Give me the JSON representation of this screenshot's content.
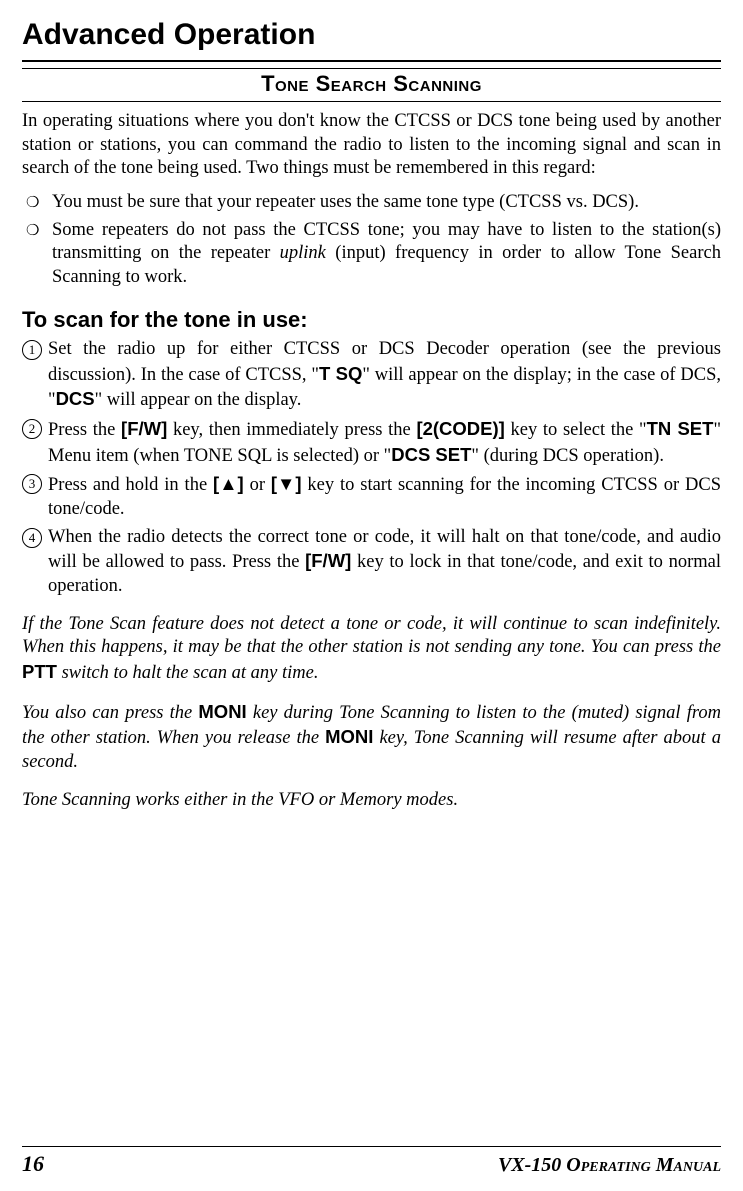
{
  "title": "Advanced Operation",
  "section_heading": "Tone Search Scanning",
  "intro": "In operating situations where you don't know the CTCSS or DCS tone being used by another station or stations, you can command the radio to listen to the incoming signal and scan in search of the tone being used. Two things must be remembered in this regard:",
  "bullets": {
    "b1": "You must be sure that your repeater uses the same tone type (CTCSS vs. DCS).",
    "b2_a": "Some repeaters do not pass the CTCSS tone; you may have to listen to the station(s) transmitting on the repeater ",
    "b2_uplink": "uplink",
    "b2_b": " (input) frequency in order to allow Tone Search Scanning to work."
  },
  "h2": "To scan for the tone in use:",
  "steps": {
    "s1_a": "Set the radio up for either CTCSS or DCS Decoder operation (see the previous discussion). In the case of CTCSS, \"",
    "s1_tsq": "T SQ",
    "s1_b": "\" will appear on the display; in the case of DCS, \"",
    "s1_dcs": "DCS",
    "s1_c": "\" will appear on the display.",
    "s2_a": "Press the ",
    "s2_key1": "[F/W]",
    "s2_b": " key, then immediately press the ",
    "s2_key2": "[2(CODE)]",
    "s2_c": " key to select the \"",
    "s2_tnset": "TN SET",
    "s2_d": "\" Menu item (when TONE SQL is selected) or \"",
    "s2_dcsset": "DCS SET",
    "s2_e": "\" (during DCS operation).",
    "s3_a": "Press and hold in the ",
    "s3_up": "[",
    "s3_up2": "]",
    "s3_b": " or ",
    "s3_dn": "[",
    "s3_dn2": "]",
    "s3_c": " key to start scanning for the incoming CTCSS or DCS tone/code.",
    "s4_a": "When the radio detects the correct tone or code, it will halt on that tone/code, and audio will be allowed to pass. Press the ",
    "s4_key": "[F/W]",
    "s4_b": " key to lock in that tone/code, and exit to normal operation."
  },
  "notes": {
    "n1_a": "If the Tone Scan feature does not detect a tone or code, it will continue to scan indefinitely. When this happens, it may be that the other station is not sending any tone. You can press the ",
    "n1_ptt": "PTT",
    "n1_b": " switch to halt the scan at any time.",
    "n2_a": "You also can press the ",
    "n2_moni1": "MONI",
    "n2_b": " key during Tone Scanning to listen to the (muted) signal from the other station. When you release the ",
    "n2_moni2": "MONI",
    "n2_c": " key, Tone Scanning will resume after about a second.",
    "n3": "Tone Scanning works either in the VFO or Memory modes."
  },
  "footer": {
    "page": "16",
    "manual": "VX-150 Operating Manual"
  },
  "glyphs": {
    "up": "▲",
    "down": "▼"
  }
}
